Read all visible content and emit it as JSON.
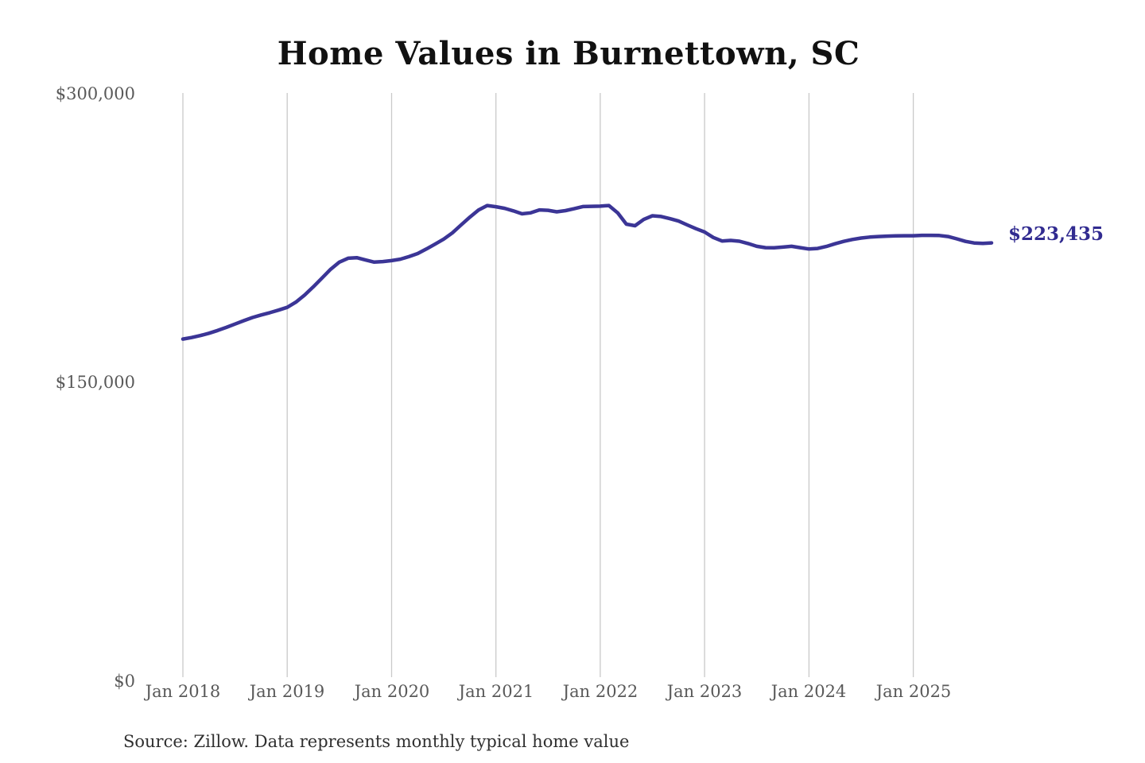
{
  "title": "Home Values in Burnettown, SC",
  "source_note": "Source: Zillow. Data represents monthly typical home value",
  "annotation": {
    "end_value_label": "$223,435"
  },
  "y_axis": {
    "tick_labels": [
      "$300,000",
      "$150,000",
      "$0"
    ]
  },
  "x_axis": {
    "tick_labels": [
      "Jan 2018",
      "Jan 2019",
      "Jan 2020",
      "Jan 2021",
      "Jan 2022",
      "Jan 2023",
      "Jan 2024",
      "Jan 2025"
    ]
  },
  "colors": {
    "line": "#3b3596",
    "annotation_text": "#312b90",
    "gridline": "#c9c9c9",
    "axis_text": "#595959",
    "title_text": "#111111",
    "source_text": "#303030",
    "background": "#ffffff"
  },
  "chart_data": {
    "type": "line",
    "title": "Home Values in Burnettown, SC",
    "ylabel": "",
    "xlabel": "",
    "ylim": [
      0,
      300000
    ],
    "y_tick_values": [
      0,
      150000,
      300000
    ],
    "y_tick_labels": [
      "$0",
      "$150,000",
      "$300,000"
    ],
    "x_tick_labels": [
      "Jan 2018",
      "Jan 2019",
      "Jan 2020",
      "Jan 2021",
      "Jan 2022",
      "Jan 2023",
      "Jan 2024",
      "Jan 2025"
    ],
    "grid": "vertical-only",
    "legend_position": "none",
    "series_name": "Typical home value (monthly)",
    "end_label": "$223,435",
    "final_value": 223435,
    "x": [
      "Jan 2018",
      "Feb 2018",
      "Mar 2018",
      "Apr 2018",
      "May 2018",
      "Jun 2018",
      "Jul 2018",
      "Aug 2018",
      "Sep 2018",
      "Oct 2018",
      "Nov 2018",
      "Dec 2018",
      "Jan 2019",
      "Feb 2019",
      "Mar 2019",
      "Apr 2019",
      "May 2019",
      "Jun 2019",
      "Jul 2019",
      "Aug 2019",
      "Sep 2019",
      "Oct 2019",
      "Nov 2019",
      "Dec 2019",
      "Jan 2020",
      "Feb 2020",
      "Mar 2020",
      "Apr 2020",
      "May 2020",
      "Jun 2020",
      "Jul 2020",
      "Aug 2020",
      "Sep 2020",
      "Oct 2020",
      "Nov 2020",
      "Dec 2020",
      "Jan 2021",
      "Feb 2021",
      "Mar 2021",
      "Apr 2021",
      "May 2021",
      "Jun 2021",
      "Jul 2021",
      "Aug 2021",
      "Sep 2021",
      "Oct 2021",
      "Nov 2021",
      "Dec 2021",
      "Jan 2022",
      "Feb 2022",
      "Mar 2022",
      "Apr 2022",
      "May 2022",
      "Jun 2022",
      "Jul 2022",
      "Aug 2022",
      "Sep 2022",
      "Oct 2022",
      "Nov 2022",
      "Dec 2022",
      "Jan 2023",
      "Feb 2023",
      "Mar 2023",
      "Apr 2023",
      "May 2023",
      "Jun 2023",
      "Jul 2023",
      "Aug 2023",
      "Sep 2023",
      "Oct 2023",
      "Nov 2023",
      "Dec 2023",
      "Jan 2024",
      "Feb 2024",
      "Mar 2024",
      "Apr 2024",
      "May 2024",
      "Jun 2024",
      "Jul 2024",
      "Aug 2024",
      "Sep 2024",
      "Oct 2024",
      "Nov 2024",
      "Dec 2024",
      "Jan 2025",
      "Feb 2025",
      "Mar 2025",
      "Apr 2025",
      "May 2025",
      "Jun 2025",
      "Jul 2025",
      "Aug 2025",
      "Sep 2025",
      "Oct 2025"
    ],
    "values": [
      174300,
      175100,
      176100,
      177300,
      178700,
      180300,
      182000,
      183700,
      185300,
      186600,
      187800,
      189100,
      190500,
      193200,
      196800,
      201000,
      205500,
      210000,
      213600,
      215600,
      215900,
      214700,
      213600,
      213900,
      214400,
      215100,
      216400,
      218000,
      220300,
      222800,
      225400,
      228600,
      232600,
      236600,
      240200,
      242500,
      241900,
      241100,
      239800,
      238300,
      238800,
      240300,
      240100,
      239300,
      239900,
      240900,
      242000,
      242100,
      242200,
      242500,
      238800,
      233000,
      232200,
      235400,
      237300,
      236900,
      235800,
      234600,
      232600,
      230700,
      229000,
      226200,
      224400,
      224700,
      224300,
      223100,
      221700,
      221000,
      220900,
      221300,
      221700,
      221000,
      220300,
      220600,
      221600,
      223000,
      224200,
      225200,
      225900,
      226400,
      226700,
      226900,
      227000,
      227100,
      227100,
      227300,
      227300,
      227200,
      226700,
      225500,
      224200,
      223400,
      223200,
      223435
    ]
  }
}
